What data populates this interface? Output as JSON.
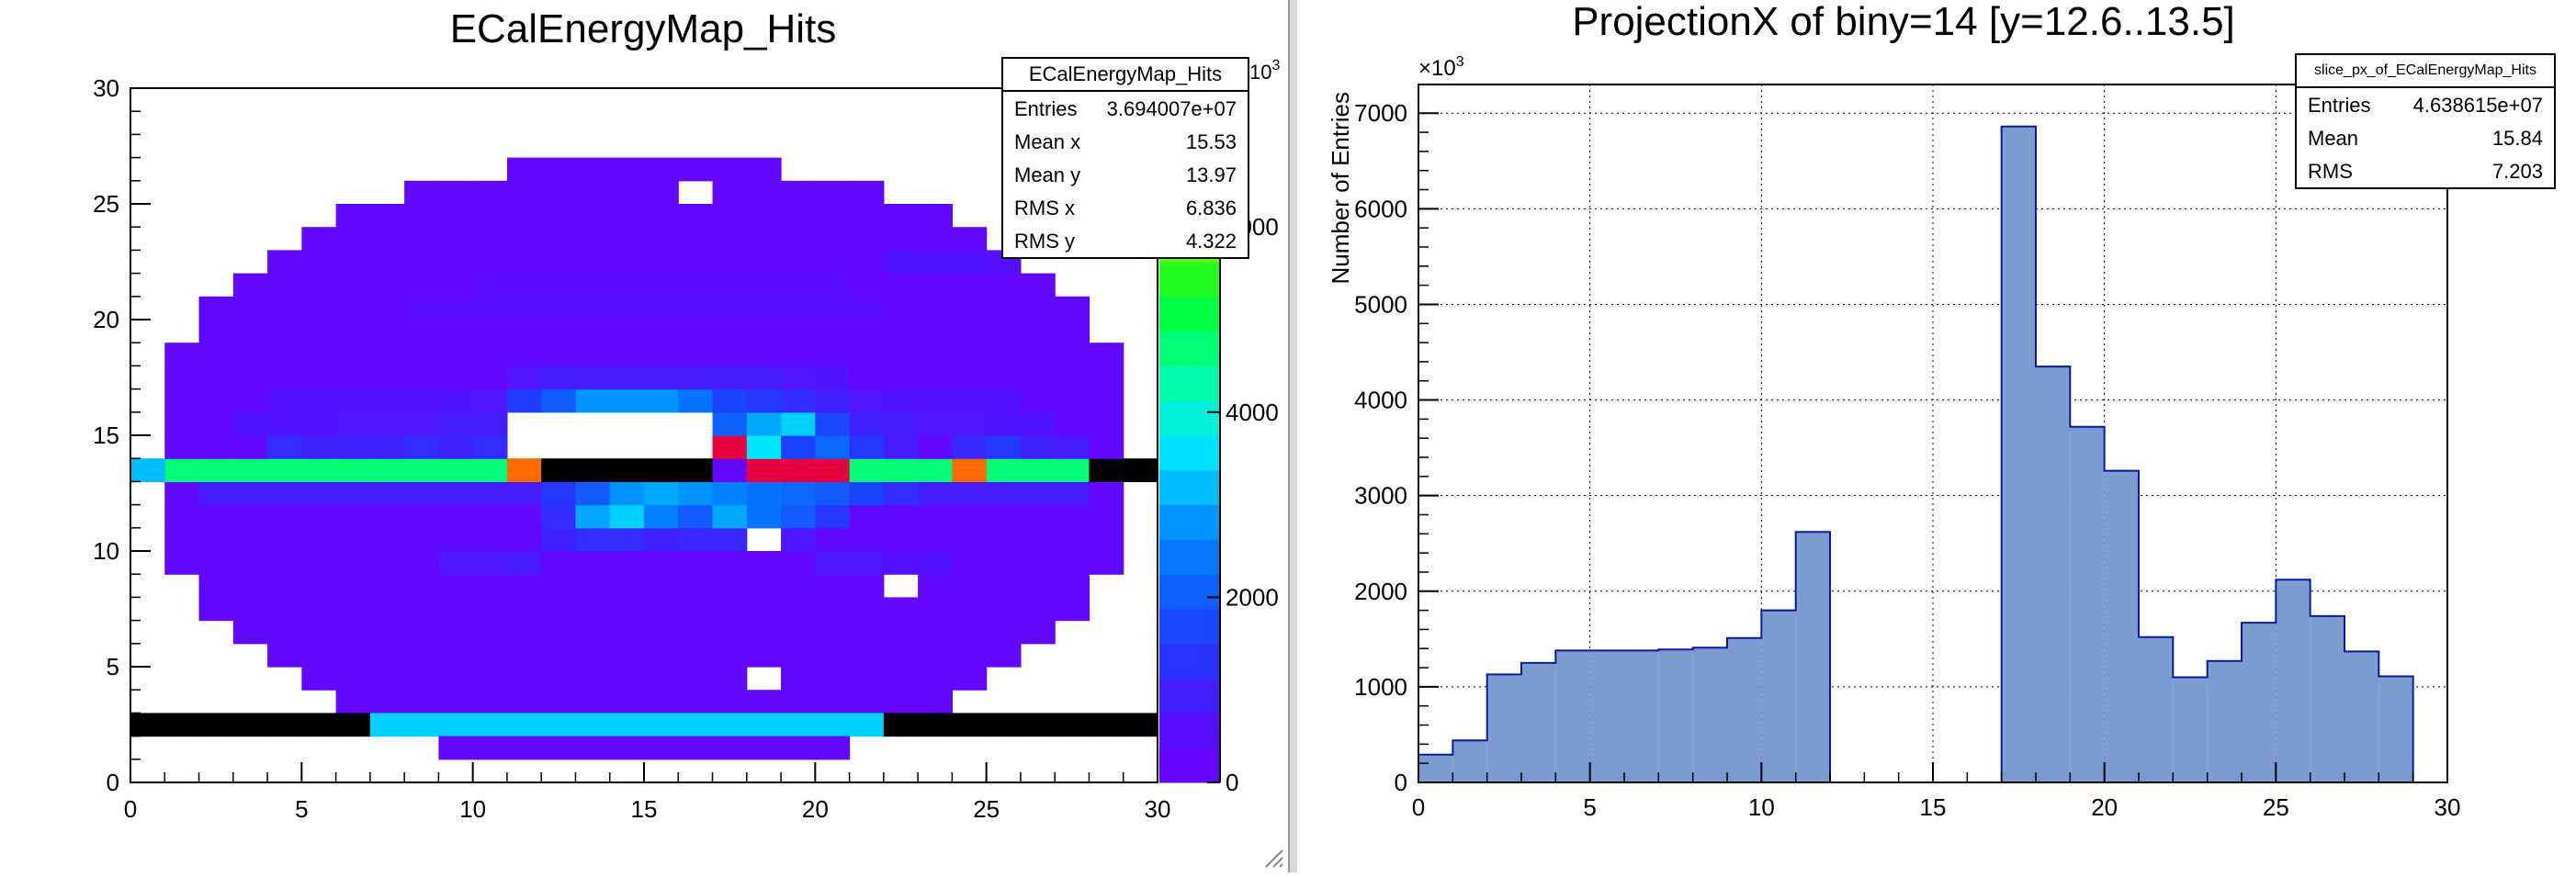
{
  "left": {
    "title": "ECalEnergyMap_Hits",
    "stats": {
      "name": "ECalEnergyMap_Hits",
      "rows": [
        {
          "label": "Entries",
          "value": "3.694007e+07"
        },
        {
          "label": "Mean x",
          "value": "15.53"
        },
        {
          "label": "Mean y",
          "value": "13.97"
        },
        {
          "label": "RMS x",
          "value": "6.836"
        },
        {
          "label": "RMS y",
          "value": "4.322"
        }
      ]
    },
    "palette_exponent": "10",
    "palette_exponent_sup": "3"
  },
  "right": {
    "title": "ProjectionX of biny=14 [y=12.6..13.5]",
    "stats": {
      "name": "slice_px_of_ECalEnergyMap_Hits",
      "rows": [
        {
          "label": "Entries",
          "value": "4.638615e+07"
        },
        {
          "label": "Mean",
          "value": "15.84"
        },
        {
          "label": "RMS",
          "value": "7.203"
        }
      ]
    },
    "y_multiplier": "×10",
    "y_multiplier_sup": "3"
  },
  "chart_data": [
    {
      "type": "heatmap",
      "title": "ECalEnergyMap_Hits",
      "xlim": [
        0,
        30
      ],
      "ylim": [
        0,
        30
      ],
      "xticks": [
        0,
        5,
        10,
        15,
        20,
        25,
        30
      ],
      "yticks": [
        0,
        5,
        10,
        15,
        20,
        25,
        30
      ],
      "bin_width": 1,
      "z_scale": {
        "ticks": [
          0,
          2000,
          4000,
          6000
        ],
        "tick_labels": [
          "0",
          "2000",
          "4000",
          "6000"
        ],
        "zlim": [
          0,
          7500
        ],
        "multiplier": "10^3"
      },
      "fill_level": 300,
      "ellipse": {
        "cx": 15,
        "cy": 14,
        "rx": 14.5,
        "ry": 13
      },
      "empty_bins": [
        [
          16,
          25
        ],
        [
          22,
          8
        ],
        [
          18,
          10
        ],
        [
          18,
          4
        ],
        [
          11,
          14
        ],
        [
          12,
          14
        ],
        [
          13,
          14
        ],
        [
          14,
          14
        ],
        [
          15,
          14
        ],
        [
          16,
          14
        ],
        [
          11,
          15
        ],
        [
          12,
          15
        ],
        [
          13,
          15
        ],
        [
          14,
          15
        ],
        [
          15,
          15
        ],
        [
          16,
          15
        ]
      ],
      "rows": [
        {
          "y": 13,
          "x_from": 0,
          "x_to": 30,
          "default": 4700,
          "overrides": [
            [
              0,
              3200
            ],
            [
              11,
              6200
            ],
            [
              12,
              30000
            ],
            [
              13,
              30000
            ],
            [
              14,
              30000
            ],
            [
              15,
              30000
            ],
            [
              16,
              30000
            ],
            [
              17,
              300
            ],
            [
              18,
              7000
            ],
            [
              19,
              7000
            ],
            [
              20,
              7000
            ],
            [
              24,
              6200
            ],
            [
              25,
              4700
            ],
            [
              28,
              30000
            ],
            [
              29,
              30000
            ]
          ]
        },
        {
          "y": 2,
          "x_from": 0,
          "x_to": 30,
          "default": 30000,
          "overrides": [
            [
              7,
              3400
            ],
            [
              8,
              3400
            ],
            [
              9,
              3400
            ],
            [
              10,
              3400
            ],
            [
              11,
              3400
            ],
            [
              12,
              3400
            ],
            [
              13,
              3400
            ],
            [
              14,
              3400
            ],
            [
              15,
              3400
            ],
            [
              16,
              3400
            ],
            [
              17,
              3400
            ],
            [
              18,
              3400
            ],
            [
              19,
              3400
            ],
            [
              20,
              3400
            ],
            [
              21,
              3400
            ]
          ]
        }
      ],
      "hotspots": [
        [
          9,
          14,
          1000
        ],
        [
          10,
          14,
          1200
        ],
        [
          11,
          14,
          1600
        ],
        [
          19,
          14,
          1600
        ],
        [
          20,
          14,
          2200
        ],
        [
          21,
          14,
          1400
        ],
        [
          22,
          14,
          900
        ],
        [
          24,
          14,
          1100
        ],
        [
          25,
          14,
          1400
        ],
        [
          26,
          14,
          1000
        ],
        [
          17,
          14,
          7000
        ],
        [
          18,
          14,
          3600
        ],
        [
          19,
          15,
          3400
        ],
        [
          18,
          15,
          3000
        ],
        [
          17,
          15,
          2100
        ],
        [
          20,
          15,
          1700
        ],
        [
          21,
          15,
          1000
        ],
        [
          11,
          16,
          1500
        ],
        [
          12,
          16,
          2000
        ],
        [
          13,
          16,
          2800
        ],
        [
          14,
          16,
          2800
        ],
        [
          15,
          16,
          2800
        ],
        [
          16,
          16,
          2400
        ],
        [
          11,
          12,
          900
        ],
        [
          12,
          12,
          1400
        ],
        [
          13,
          12,
          2000
        ],
        [
          14,
          12,
          2800
        ],
        [
          15,
          12,
          3000
        ],
        [
          16,
          12,
          2800
        ],
        [
          17,
          12,
          2600
        ],
        [
          18,
          12,
          2400
        ],
        [
          19,
          12,
          2200
        ],
        [
          20,
          12,
          2000
        ],
        [
          21,
          12,
          1600
        ],
        [
          22,
          12,
          1200
        ],
        [
          12,
          11,
          1200
        ],
        [
          13,
          11,
          3000
        ],
        [
          14,
          11,
          3400
        ],
        [
          15,
          11,
          2600
        ],
        [
          16,
          11,
          2000
        ],
        [
          17,
          11,
          3000
        ],
        [
          18,
          11,
          2400
        ],
        [
          19,
          11,
          2000
        ],
        [
          20,
          11,
          1400
        ],
        [
          12,
          10,
          1000
        ],
        [
          13,
          10,
          1200
        ],
        [
          14,
          10,
          1200
        ],
        [
          15,
          10,
          1000
        ],
        [
          16,
          10,
          1100
        ],
        [
          17,
          10,
          1100
        ],
        [
          18,
          10,
          800
        ],
        [
          19,
          10,
          800
        ],
        [
          4,
          14,
          1200
        ],
        [
          5,
          14,
          1000
        ],
        [
          6,
          14,
          1000
        ],
        [
          7,
          14,
          1000
        ],
        [
          8,
          14,
          1200
        ],
        [
          27,
          14,
          900
        ],
        [
          2,
          12,
          900
        ],
        [
          3,
          12,
          900
        ],
        [
          4,
          12,
          900
        ],
        [
          5,
          12,
          900
        ],
        [
          6,
          12,
          900
        ],
        [
          7,
          12,
          900
        ],
        [
          8,
          12,
          900
        ],
        [
          9,
          12,
          900
        ],
        [
          10,
          12,
          900
        ],
        [
          23,
          12,
          900
        ],
        [
          24,
          12,
          900
        ],
        [
          25,
          12,
          900
        ],
        [
          26,
          12,
          900
        ],
        [
          27,
          12,
          900
        ],
        [
          3,
          15,
          700
        ],
        [
          4,
          15,
          700
        ],
        [
          5,
          15,
          700
        ],
        [
          6,
          15,
          800
        ],
        [
          7,
          15,
          800
        ],
        [
          8,
          15,
          800
        ],
        [
          9,
          15,
          900
        ],
        [
          10,
          15,
          900
        ],
        [
          22,
          15,
          900
        ],
        [
          23,
          15,
          800
        ],
        [
          24,
          15,
          800
        ],
        [
          25,
          15,
          700
        ],
        [
          26,
          15,
          700
        ],
        [
          4,
          16,
          650
        ],
        [
          5,
          16,
          650
        ],
        [
          6,
          16,
          650
        ],
        [
          7,
          16,
          650
        ],
        [
          8,
          16,
          650
        ],
        [
          9,
          16,
          700
        ],
        [
          10,
          16,
          800
        ],
        [
          17,
          16,
          1600
        ],
        [
          18,
          16,
          1400
        ],
        [
          19,
          16,
          1200
        ],
        [
          20,
          16,
          1000
        ],
        [
          21,
          16,
          800
        ],
        [
          22,
          16,
          700
        ],
        [
          23,
          16,
          650
        ],
        [
          24,
          16,
          650
        ],
        [
          25,
          16,
          650
        ],
        [
          9,
          9,
          800
        ],
        [
          10,
          9,
          800
        ],
        [
          11,
          9,
          900
        ],
        [
          20,
          9,
          800
        ],
        [
          21,
          9,
          800
        ],
        [
          22,
          9,
          650
        ],
        [
          23,
          9,
          650
        ],
        [
          11,
          17,
          800
        ],
        [
          12,
          17,
          900
        ],
        [
          13,
          17,
          900
        ],
        [
          14,
          17,
          900
        ],
        [
          15,
          17,
          900
        ],
        [
          16,
          17,
          900
        ],
        [
          17,
          17,
          900
        ],
        [
          18,
          17,
          900
        ],
        [
          19,
          17,
          800
        ],
        [
          20,
          17,
          700
        ],
        [
          22,
          22,
          700
        ],
        [
          23,
          22,
          700
        ],
        [
          24,
          22,
          700
        ],
        [
          25,
          22,
          600
        ],
        [
          8,
          20,
          500
        ],
        [
          9,
          20,
          500
        ],
        [
          10,
          20,
          500
        ],
        [
          11,
          20,
          500
        ],
        [
          12,
          20,
          500
        ],
        [
          13,
          20,
          500
        ],
        [
          14,
          20,
          500
        ],
        [
          15,
          20,
          500
        ],
        [
          16,
          20,
          500
        ],
        [
          17,
          20,
          500
        ],
        [
          18,
          20,
          500
        ],
        [
          19,
          20,
          500
        ],
        [
          20,
          20,
          500
        ],
        [
          21,
          20,
          500
        ],
        [
          10,
          21,
          450
        ],
        [
          11,
          21,
          450
        ],
        [
          12,
          21,
          450
        ],
        [
          13,
          21,
          450
        ],
        [
          14,
          21,
          450
        ],
        [
          15,
          21,
          450
        ],
        [
          16,
          21,
          450
        ],
        [
          17,
          21,
          450
        ],
        [
          18,
          21,
          450
        ],
        [
          19,
          21,
          450
        ],
        [
          20,
          21,
          450
        ]
      ],
      "bottom_strip": {
        "y": 1,
        "x_from": 9,
        "x_to": 20,
        "value": 300
      }
    },
    {
      "type": "bar",
      "title": "ProjectionX of biny=14 [y=12.6..13.5]",
      "ylabel": "Number of Entries",
      "xlim": [
        0,
        30
      ],
      "ylim": [
        0,
        7300
      ],
      "xticks": [
        0,
        5,
        10,
        15,
        20,
        25,
        30
      ],
      "yticks": [
        0,
        1000,
        2000,
        3000,
        4000,
        5000,
        6000,
        7000
      ],
      "y_multiplier": "10^3",
      "bin_width": 1,
      "bin_low_edges": [
        0,
        1,
        2,
        3,
        4,
        5,
        6,
        7,
        8,
        9,
        10,
        11,
        12,
        13,
        14,
        15,
        16,
        17,
        18,
        19,
        20,
        21,
        22,
        23,
        24,
        25,
        26,
        27,
        28,
        29
      ],
      "values": [
        290,
        440,
        1130,
        1250,
        1380,
        1380,
        1380,
        1390,
        1410,
        1510,
        1800,
        2620,
        0,
        0,
        0,
        0,
        0,
        6860,
        4350,
        3720,
        3260,
        1520,
        1100,
        1270,
        1670,
        2120,
        1740,
        1370,
        1110,
        0
      ],
      "x_offset": 0,
      "grid": true
    }
  ]
}
